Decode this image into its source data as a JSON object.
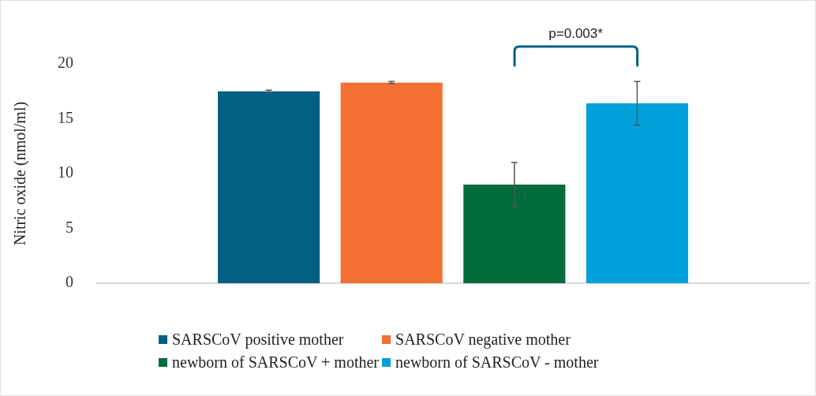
{
  "chart_data": {
    "type": "bar",
    "ylabel": "Nitric oxide (nmol/ml)",
    "categories": [
      null
    ],
    "series": [
      {
        "name": "SARSCoV positive mother",
        "color": "#005f83",
        "values": [
          17.5
        ],
        "errors": [
          0.1
        ]
      },
      {
        "name": "SARSCoV negative mother",
        "color": "#f37032",
        "values": [
          18.3
        ],
        "errors": [
          0.1
        ]
      },
      {
        "name": "newborn of SARSCoV + mother",
        "color": "#006c3b",
        "values": [
          9.0
        ],
        "errors": [
          2.0
        ]
      },
      {
        "name": "newborn of SARSCoV - mother",
        "color": "#00a0db",
        "values": [
          16.4
        ],
        "errors": [
          2.0
        ]
      }
    ],
    "ylim": [
      0,
      20
    ],
    "yticks": [
      0,
      5,
      10,
      15,
      20
    ],
    "grid": false,
    "legend": "bottom",
    "annotations": [
      "p=0.003*"
    ]
  }
}
